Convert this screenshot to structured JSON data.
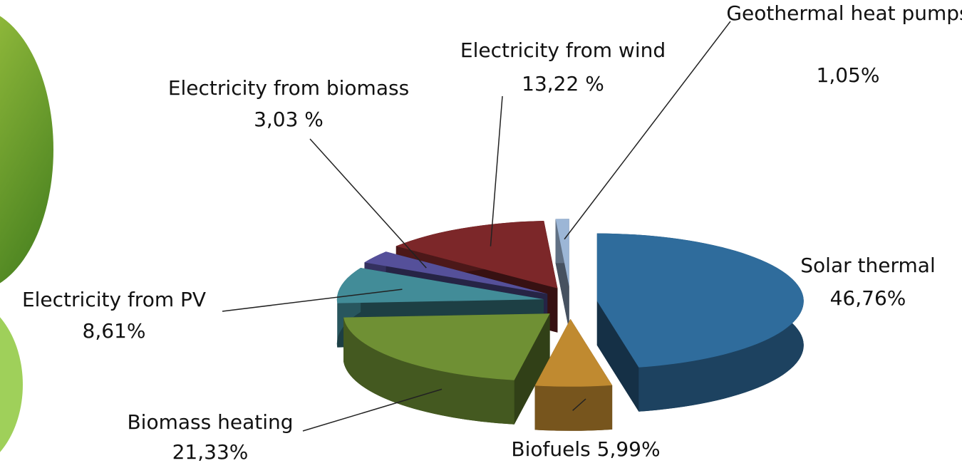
{
  "chart_data": {
    "type": "pie",
    "categories": [
      "Solar thermal",
      "Biofuels",
      "Biomass heating",
      "Electricity from PV",
      "Electricity from biomass",
      "Electricity from wind",
      "Geothermal heat pumps"
    ],
    "values": [
      46.76,
      5.99,
      21.33,
      8.61,
      3.03,
      13.22,
      1.05
    ],
    "value_labels": [
      "46,76%",
      "5,99%",
      "21,33%",
      "8,61%",
      "3,03 %",
      "13,22 %",
      "1,05%"
    ],
    "colors": [
      "#2f6c9c",
      "#c08a30",
      "#6f9034",
      "#428c98",
      "#55509a",
      "#7c2729",
      "#9cb6d6"
    ]
  }
}
